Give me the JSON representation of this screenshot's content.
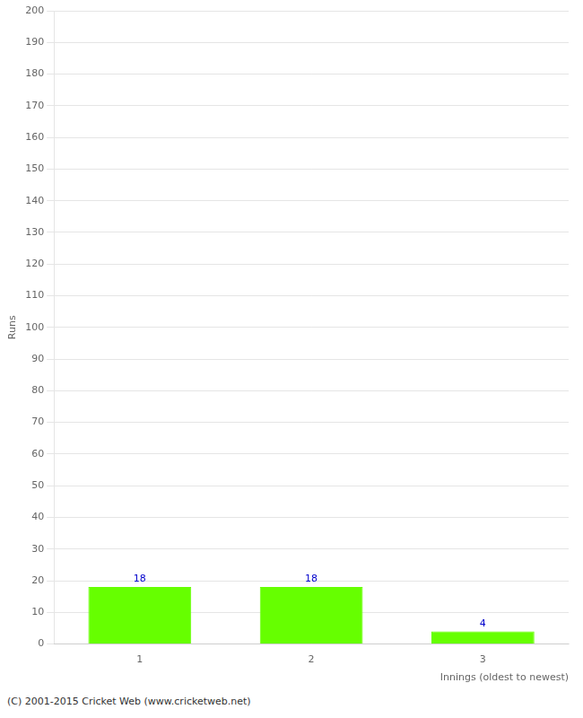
{
  "chart_data": {
    "type": "bar",
    "xlabel": "Innings (oldest to newest)",
    "ylabel": "Runs",
    "categories": [
      "1",
      "2",
      "3"
    ],
    "values": [
      18,
      18,
      4
    ],
    "color": "#66ff00",
    "ylim": [
      0,
      200
    ],
    "yticks": [
      0,
      10,
      20,
      30,
      40,
      50,
      60,
      70,
      80,
      90,
      100,
      110,
      120,
      130,
      140,
      150,
      160,
      170,
      180,
      190,
      200
    ],
    "grid": true,
    "data_labels": true,
    "annotations": [
      "(C) 2001-2015 Cricket Web (www.cricketweb.net)"
    ]
  }
}
